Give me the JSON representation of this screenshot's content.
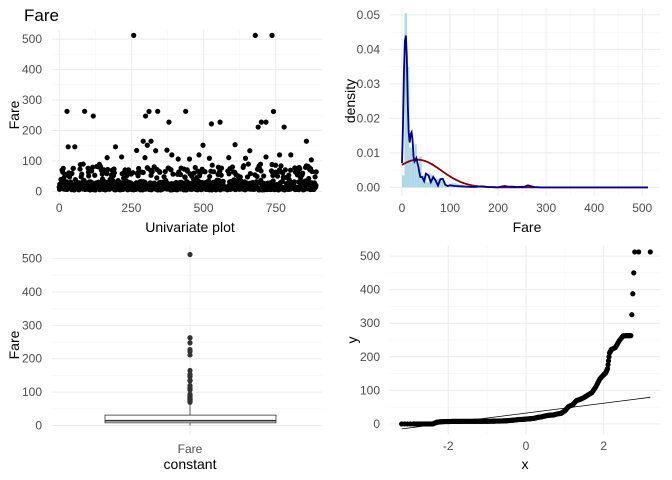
{
  "colors": {
    "point": "#000000",
    "hist_fill": "#add8e6",
    "kde_line": "#00008b",
    "normal_line": "#8b0000",
    "grid": "#ebebeb",
    "text": "#4d4d4d"
  },
  "chart_data": [
    {
      "id": "univariate",
      "type": "scatter",
      "title": "Fare",
      "xlabel": "Univariate plot",
      "ylabel": "Fare",
      "xlim": [
        0,
        891
      ],
      "ylim": [
        0,
        512.33
      ],
      "xticks": [
        "0",
        "250",
        "500",
        "750"
      ],
      "xtick_values": [
        0,
        250,
        500,
        750
      ],
      "yticks": [
        "0",
        "100",
        "200",
        "300",
        "400",
        "500"
      ],
      "ytick_values": [
        0,
        100,
        200,
        300,
        400,
        500
      ],
      "grid": true,
      "outliers": [
        {
          "x": 258,
          "y": 512.33
        },
        {
          "x": 679,
          "y": 512.33
        },
        {
          "x": 737,
          "y": 512.33
        },
        {
          "x": 27,
          "y": 263
        },
        {
          "x": 88,
          "y": 263
        },
        {
          "x": 118,
          "y": 247.52
        },
        {
          "x": 299,
          "y": 247.52
        },
        {
          "x": 311,
          "y": 262.38
        },
        {
          "x": 341,
          "y": 263
        },
        {
          "x": 438,
          "y": 263
        },
        {
          "x": 742,
          "y": 262.38
        },
        {
          "x": 689,
          "y": 211.34
        },
        {
          "x": 700,
          "y": 227.53
        },
        {
          "x": 716,
          "y": 227.53
        },
        {
          "x": 557,
          "y": 227.53
        },
        {
          "x": 527,
          "y": 221.78
        },
        {
          "x": 779,
          "y": 211.34
        },
        {
          "x": 380,
          "y": 227.53
        },
        {
          "x": 31,
          "y": 146.52
        },
        {
          "x": 195,
          "y": 146.52
        },
        {
          "x": 268,
          "y": 134.5
        },
        {
          "x": 291,
          "y": 164.87
        },
        {
          "x": 305,
          "y": 151.55
        },
        {
          "x": 318,
          "y": 164.87
        },
        {
          "x": 334,
          "y": 133.65
        },
        {
          "x": 373,
          "y": 135.63
        },
        {
          "x": 498,
          "y": 151.55
        },
        {
          "x": 609,
          "y": 153.46
        },
        {
          "x": 660,
          "y": 133.65
        },
        {
          "x": 856,
          "y": 164.87
        },
        {
          "x": 216,
          "y": 113.28
        },
        {
          "x": 297,
          "y": 110.88
        },
        {
          "x": 587,
          "y": 110.88
        },
        {
          "x": 451,
          "y": 106.43
        },
        {
          "x": 484,
          "y": 120
        },
        {
          "x": 520,
          "y": 108.9
        },
        {
          "x": 716,
          "y": 113.28
        },
        {
          "x": 763,
          "y": 120
        },
        {
          "x": 802,
          "y": 120
        },
        {
          "x": 390,
          "y": 120
        },
        {
          "x": 645,
          "y": 108.9
        },
        {
          "x": 54,
          "y": 146.52
        },
        {
          "x": 166,
          "y": 110.88
        },
        {
          "x": 412,
          "y": 106.43
        },
        {
          "x": 873,
          "y": 103.5
        }
      ]
    },
    {
      "id": "density",
      "type": "area",
      "xlabel": "Fare",
      "ylabel": "density",
      "xlim": [
        -25,
        537
      ],
      "ylim": [
        -0.0025,
        0.052
      ],
      "xticks": [
        "0",
        "100",
        "200",
        "300",
        "400",
        "500"
      ],
      "xtick_values": [
        0,
        100,
        200,
        300,
        400,
        500
      ],
      "yticks": [
        "0.00",
        "0.01",
        "0.02",
        "0.03",
        "0.04",
        "0.05"
      ],
      "ytick_values": [
        0,
        0.01,
        0.02,
        0.03,
        0.04,
        0.05
      ],
      "grid": true,
      "histogram": {
        "bin_width": 5.12,
        "bin_start": 0,
        "density": [
          0.0035,
          0.0505,
          0.035,
          0.0115,
          0.0105,
          0.0125,
          0.0055,
          0.009,
          0.0035,
          0.004,
          0.0015,
          0.004,
          0.0035,
          0.0025,
          0.0025,
          0.002,
          0.0018,
          0.0008,
          0.0005,
          0.001,
          0.0012,
          0.0012,
          0.001,
          0.0008,
          0.0008,
          0.0004,
          0.0004,
          0.0002,
          0.0004,
          0.0006,
          0.0004,
          0.0003
        ]
      },
      "kde": {
        "x": [
          0,
          2,
          4,
          6,
          8,
          10,
          12,
          14,
          16,
          18,
          20,
          22,
          24,
          26,
          28,
          30,
          34,
          38,
          42,
          46,
          50,
          55,
          60,
          65,
          70,
          75,
          80,
          85,
          90,
          95,
          100,
          110,
          120,
          135,
          150,
          165,
          180,
          200,
          210,
          215,
          220,
          230,
          240,
          255,
          262,
          267,
          275,
          290,
          320,
          400,
          512
        ],
        "y": [
          0.007,
          0.018,
          0.033,
          0.0425,
          0.044,
          0.038,
          0.024,
          0.016,
          0.013,
          0.0155,
          0.016,
          0.0135,
          0.009,
          0.0075,
          0.008,
          0.0085,
          0.006,
          0.003,
          0.003,
          0.0018,
          0.004,
          0.0035,
          0.0015,
          0.003,
          0.002,
          0.0005,
          0.0024,
          0.0025,
          0.0008,
          0.0004,
          0.0006,
          0.0004,
          0.0003,
          0.0002,
          0.0001,
          0.0003,
          0.0001,
          0,
          0.0003,
          0.0004,
          0.0002,
          0.0002,
          0.0001,
          0.0002,
          0.0006,
          0.0004,
          0.0001,
          0,
          0,
          0,
          0
        ]
      },
      "normal": {
        "mean": 32.2,
        "sd": 49.69
      }
    },
    {
      "id": "boxplot",
      "type": "box",
      "xlabel": "constant",
      "ylabel": "Fare",
      "category": "Fare",
      "ylim": [
        -25.6,
        537.9
      ],
      "yticks": [
        "0",
        "100",
        "200",
        "300",
        "400",
        "500"
      ],
      "ytick_values": [
        0,
        100,
        200,
        300,
        400,
        500
      ],
      "grid": true,
      "q1": 7.91,
      "median": 14.45,
      "q3": 31,
      "whisker_low": 0,
      "whisker_high": 65,
      "outliers": [
        512.33,
        263,
        262.38,
        247.52,
        227.53,
        221.78,
        211.34,
        164.87,
        153.46,
        151.55,
        146.52,
        135.63,
        134.5,
        133.65,
        120,
        113.28,
        110.88,
        108.9,
        106.43,
        93.5,
        91.08,
        90,
        89.1,
        86.5,
        83.16,
        82.17,
        79.65,
        78.85,
        77.96,
        76.73,
        75.25,
        73.5,
        71,
        69.55
      ]
    },
    {
      "id": "qq",
      "type": "scatter",
      "xlabel": "x",
      "ylabel": "y",
      "xlim": [
        -3.5,
        3.45
      ],
      "ylim": [
        -30,
        530
      ],
      "xticks": [
        "-2",
        "0",
        "2"
      ],
      "xtick_values": [
        -2,
        0,
        2
      ],
      "yticks": [
        "0",
        "100",
        "200",
        "300",
        "400",
        "500"
      ],
      "ytick_values": [
        0,
        100,
        200,
        300,
        400,
        500
      ],
      "grid": true,
      "points_x": [
        -3.2,
        -2.9,
        -2.75,
        -2.6,
        -2.5,
        -2.4,
        -2.3,
        -2.2,
        -2.1,
        -2.0,
        -1.9,
        -1.8,
        -1.7,
        -1.6,
        -1.5,
        -1.4,
        -1.3,
        -1.2,
        -1.1,
        -1.0,
        -0.9,
        -0.8,
        -0.7,
        -0.6,
        -0.5,
        -0.4,
        -0.3,
        -0.2,
        -0.1,
        0.0,
        0.1,
        0.2,
        0.3,
        0.4,
        0.5,
        0.6,
        0.7,
        0.8,
        0.9,
        1.0,
        1.1,
        1.2,
        1.3,
        1.4,
        1.5,
        1.6,
        1.7,
        1.8,
        1.9,
        2.0,
        2.05,
        2.1,
        2.15,
        2.2,
        2.3,
        2.4,
        2.5,
        2.6,
        2.7,
        2.8,
        2.9,
        3.2
      ],
      "points_y": [
        0,
        0,
        0,
        0,
        0,
        0,
        5,
        6.5,
        7,
        7.2,
        7.5,
        7.6,
        7.7,
        7.75,
        7.8,
        7.85,
        7.9,
        7.9,
        8,
        8.05,
        8.1,
        8.4,
        8.66,
        9,
        9.5,
        10.5,
        11.5,
        13,
        13.5,
        14.45,
        15.5,
        16.5,
        19.5,
        21,
        24,
        26,
        26.55,
        29.7,
        31.5,
        39,
        52,
        57,
        69.55,
        73.5,
        79.2,
        86.5,
        93.5,
        110.88,
        133.65,
        146.52,
        151.55,
        164.87,
        211.34,
        221.78,
        227.53,
        247.52,
        262.38,
        263,
        263,
        512.33,
        512.33,
        512.33
      ],
      "line": {
        "intercept": 32.2,
        "slope": 14.7
      }
    }
  ]
}
